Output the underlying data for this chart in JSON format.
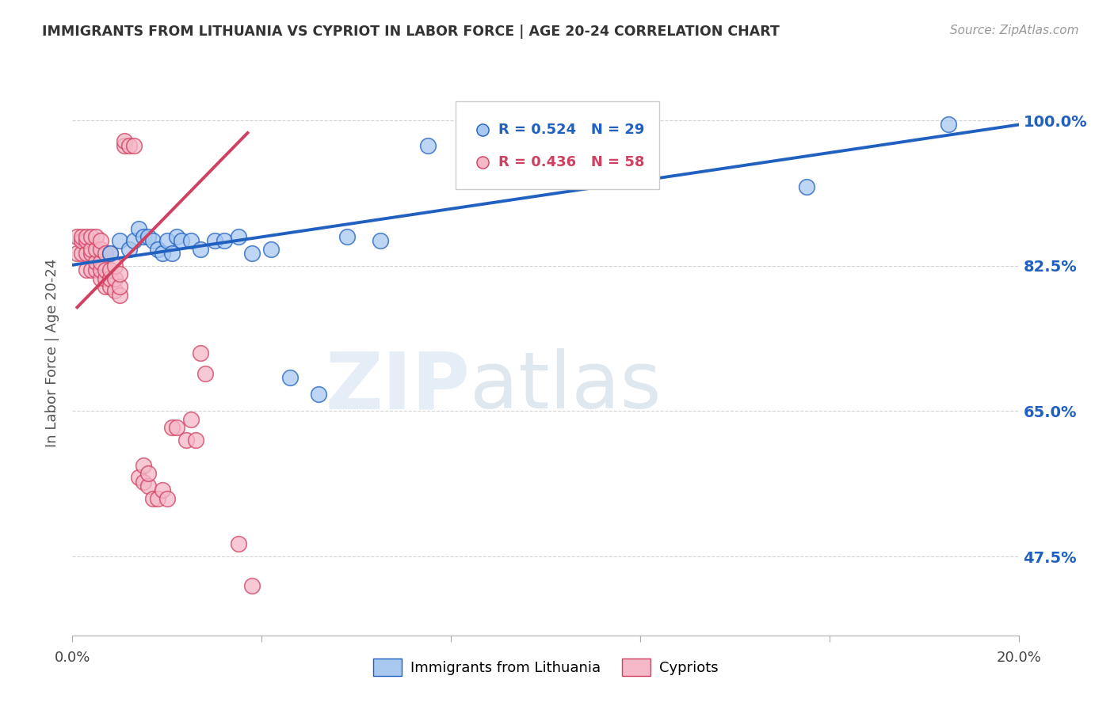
{
  "title": "IMMIGRANTS FROM LITHUANIA VS CYPRIOT IN LABOR FORCE | AGE 20-24 CORRELATION CHART",
  "source": "Source: ZipAtlas.com",
  "ylabel": "In Labor Force | Age 20-24",
  "yticks": [
    0.475,
    0.65,
    0.825,
    1.0
  ],
  "ytick_labels": [
    "47.5%",
    "65.0%",
    "82.5%",
    "100.0%"
  ],
  "xlim": [
    0.0,
    0.2
  ],
  "ylim": [
    0.38,
    1.06
  ],
  "legend_blue_r": "R = 0.524",
  "legend_blue_n": "N = 29",
  "legend_pink_r": "R = 0.436",
  "legend_pink_n": "N = 58",
  "legend_label_blue": "Immigrants from Lithuania",
  "legend_label_pink": "Cypriots",
  "blue_color": "#a8c8f0",
  "pink_color": "#f5b8c8",
  "blue_line_color": "#2060c0",
  "pink_line_color": "#d04060",
  "blue_scatter_x": [
    0.008,
    0.01,
    0.012,
    0.013,
    0.014,
    0.015,
    0.016,
    0.017,
    0.018,
    0.019,
    0.02,
    0.021,
    0.022,
    0.023,
    0.025,
    0.027,
    0.03,
    0.032,
    0.035,
    0.038,
    0.042,
    0.046,
    0.052,
    0.058,
    0.065,
    0.075,
    0.085,
    0.155,
    0.185
  ],
  "blue_scatter_y": [
    0.84,
    0.855,
    0.845,
    0.855,
    0.87,
    0.86,
    0.86,
    0.855,
    0.845,
    0.84,
    0.855,
    0.84,
    0.86,
    0.855,
    0.855,
    0.845,
    0.855,
    0.855,
    0.86,
    0.84,
    0.845,
    0.69,
    0.67,
    0.86,
    0.855,
    0.97,
    0.97,
    0.92,
    0.995
  ],
  "pink_scatter_x": [
    0.001,
    0.001,
    0.002,
    0.002,
    0.002,
    0.003,
    0.003,
    0.003,
    0.003,
    0.004,
    0.004,
    0.004,
    0.004,
    0.005,
    0.005,
    0.005,
    0.005,
    0.006,
    0.006,
    0.006,
    0.006,
    0.006,
    0.007,
    0.007,
    0.007,
    0.007,
    0.008,
    0.008,
    0.008,
    0.008,
    0.009,
    0.009,
    0.009,
    0.01,
    0.01,
    0.01,
    0.011,
    0.011,
    0.012,
    0.013,
    0.014,
    0.015,
    0.015,
    0.016,
    0.016,
    0.017,
    0.018,
    0.019,
    0.02,
    0.021,
    0.022,
    0.024,
    0.025,
    0.026,
    0.027,
    0.028,
    0.035,
    0.038
  ],
  "pink_scatter_y": [
    0.86,
    0.84,
    0.84,
    0.855,
    0.86,
    0.82,
    0.84,
    0.855,
    0.86,
    0.82,
    0.84,
    0.845,
    0.86,
    0.82,
    0.83,
    0.845,
    0.86,
    0.81,
    0.82,
    0.83,
    0.845,
    0.855,
    0.8,
    0.81,
    0.82,
    0.84,
    0.8,
    0.81,
    0.82,
    0.84,
    0.795,
    0.81,
    0.825,
    0.79,
    0.8,
    0.815,
    0.97,
    0.975,
    0.97,
    0.97,
    0.57,
    0.565,
    0.585,
    0.56,
    0.575,
    0.545,
    0.545,
    0.555,
    0.545,
    0.63,
    0.63,
    0.615,
    0.64,
    0.615,
    0.72,
    0.695,
    0.49,
    0.44
  ],
  "pink_line_x_start": 0.001,
  "pink_line_x_end": 0.038,
  "watermark_zip": "ZIP",
  "watermark_atlas": "atlas",
  "background_color": "#ffffff",
  "grid_color": "#c8c8c8"
}
